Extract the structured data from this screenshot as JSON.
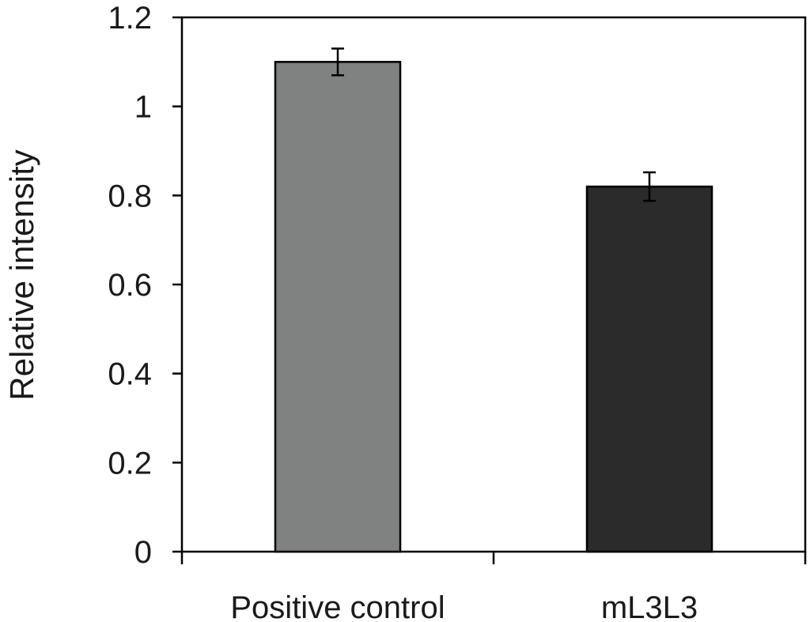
{
  "chart_data": {
    "type": "bar",
    "title": "",
    "xlabel": "",
    "ylabel": "Relative intensity",
    "categories": [
      "Positive control",
      "mL3L3"
    ],
    "values": [
      1.1,
      0.82
    ],
    "errors": [
      0.03,
      0.032
    ],
    "ylim": [
      0,
      1.2
    ],
    "yticks": [
      "0",
      "0.2",
      "0.4",
      "0.6",
      "0.8",
      "1",
      "1.2"
    ],
    "grid": false,
    "legend": "none",
    "colors": [
      "#808281",
      "#2b2b2b"
    ],
    "axis_color": "#000000"
  }
}
